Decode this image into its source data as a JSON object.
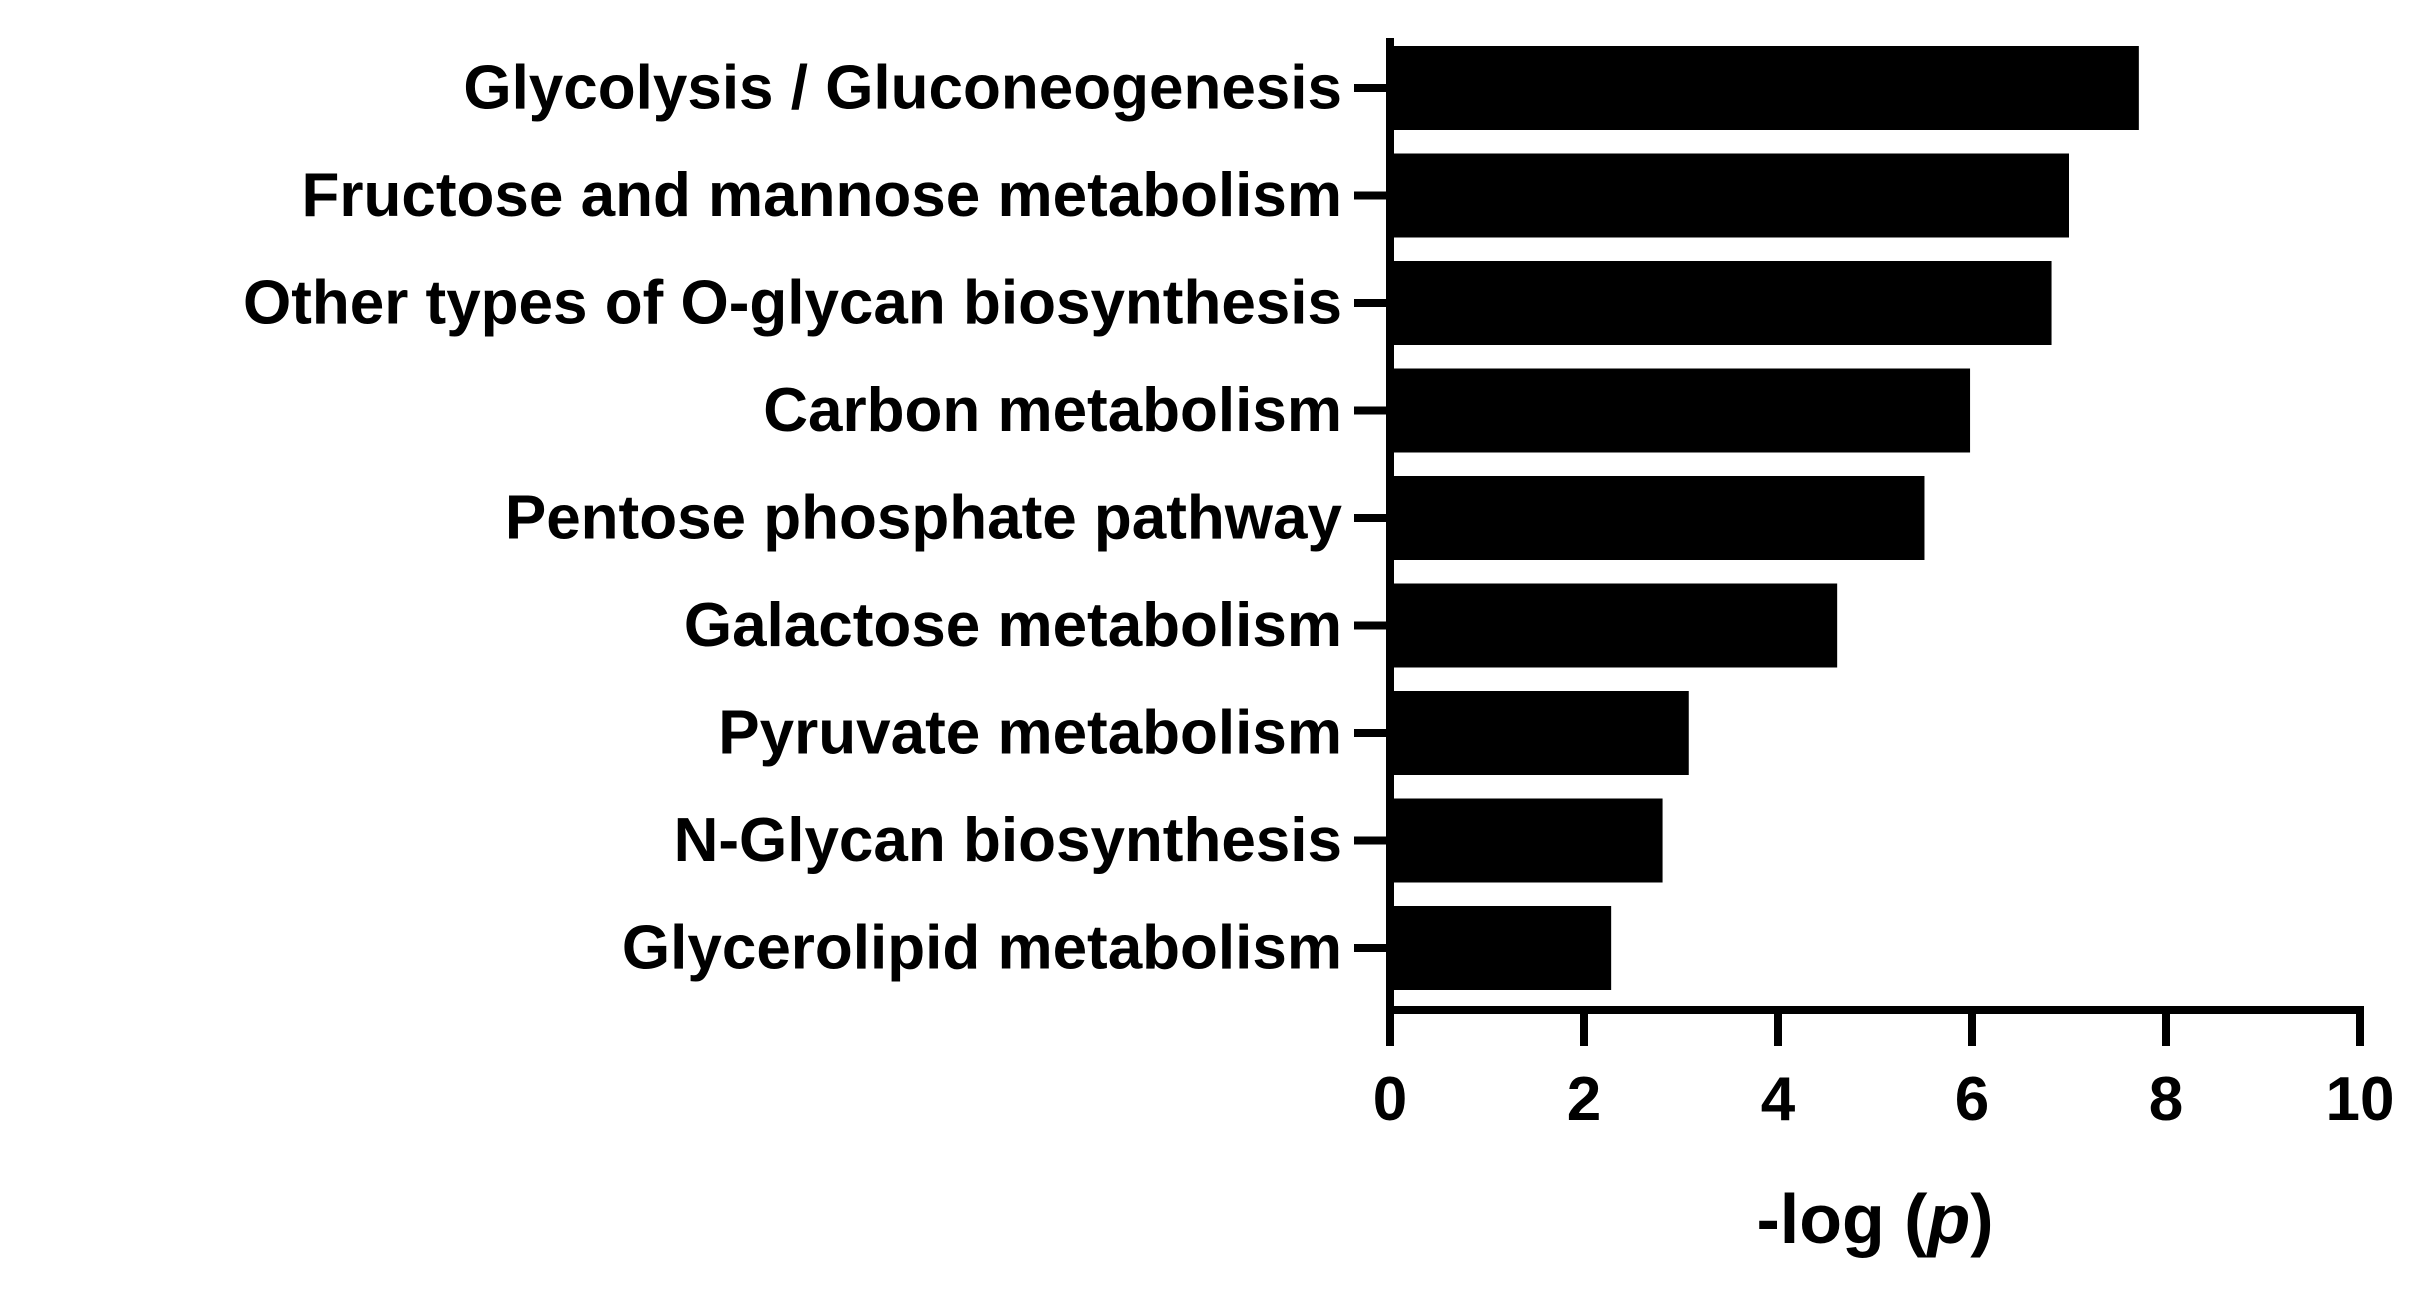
{
  "chart_data": {
    "type": "bar",
    "orientation": "horizontal",
    "categories": [
      "Glycolysis / Gluconeogenesis",
      "Fructose and mannose metabolism",
      "Other types of O-glycan biosynthesis",
      "Carbon metabolism",
      "Pentose phosphate pathway",
      "Galactose metabolism",
      "Pyruvate metabolism",
      "N-Glycan biosynthesis",
      "Glycerolipid metabolism"
    ],
    "values": [
      7.72,
      7.0,
      6.82,
      5.98,
      5.51,
      4.61,
      3.08,
      2.81,
      2.28
    ],
    "title": "",
    "xlabel": "-log (p)",
    "xlabel_prefix": "-log (",
    "xlabel_italic": "p",
    "xlabel_suffix": ")",
    "ylabel": "",
    "xlim": [
      0,
      10
    ],
    "xticks": [
      "0",
      "2",
      "4",
      "6",
      "8",
      "10"
    ],
    "grid": false,
    "legend": "none",
    "bar_color": "#000000"
  }
}
